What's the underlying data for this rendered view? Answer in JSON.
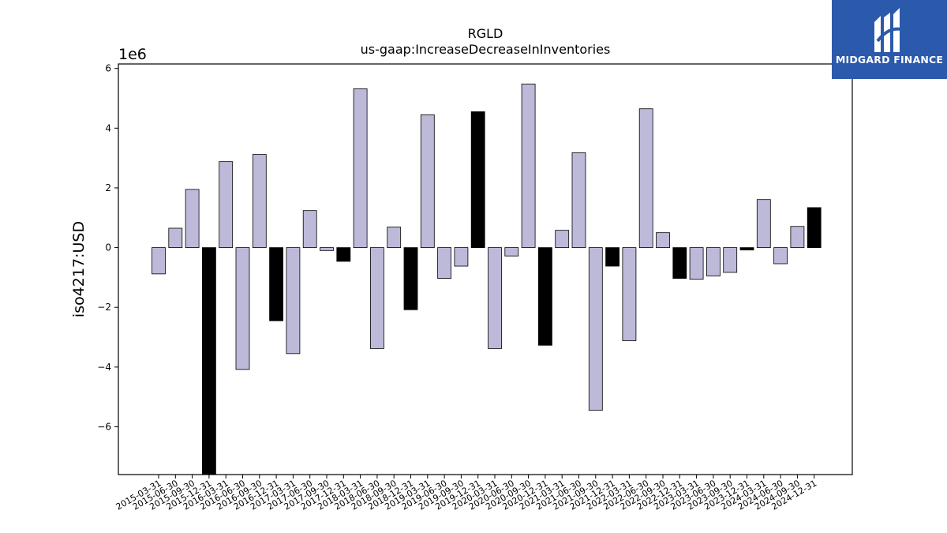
{
  "chart_data": {
    "type": "bar",
    "title": "RGLD",
    "subtitle": "us-gaap:IncreaseDecreaseInInventories",
    "xlabel": "",
    "ylabel": "iso4217:USD",
    "y_multiplier_label": "1e6",
    "ylim": [
      -7600000,
      6150000
    ],
    "yticks": [
      -6000000,
      -4000000,
      -2000000,
      0,
      2000000,
      4000000,
      6000000
    ],
    "ytick_labels": [
      "−6",
      "−4",
      "−2",
      "0",
      "2",
      "4",
      "6"
    ],
    "grid": false,
    "categories": [
      "2015-03-31",
      "2015-06-30",
      "2015-09-30",
      "2015-12-31",
      "2016-03-31",
      "2016-06-30",
      "2016-09-30",
      "2016-12-31",
      "2017-03-31",
      "2017-06-30",
      "2017-09-30",
      "2017-12-31",
      "2018-03-31",
      "2018-06-30",
      "2018-09-30",
      "2018-12-31",
      "2019-03-31",
      "2019-06-30",
      "2019-09-30",
      "2019-12-31",
      "2020-03-31",
      "2020-06-30",
      "2020-09-30",
      "2020-12-31",
      "2021-03-31",
      "2021-06-30",
      "2021-09-30",
      "2021-12-31",
      "2022-03-31",
      "2022-06-30",
      "2022-09-30",
      "2022-12-31",
      "2023-03-31",
      "2023-06-30",
      "2023-09-30",
      "2023-12-31",
      "2024-03-31",
      "2024-06-30",
      "2024-09-30",
      "2024-12-31"
    ],
    "values": [
      -880000,
      650000,
      1950000,
      -7600000,
      2880000,
      -4080000,
      3120000,
      -2450000,
      -3550000,
      1240000,
      -100000,
      -460000,
      5320000,
      -3380000,
      690000,
      -2080000,
      4450000,
      -1030000,
      -620000,
      4550000,
      -3380000,
      -280000,
      5480000,
      -3270000,
      580000,
      3180000,
      -5450000,
      -620000,
      -3120000,
      4650000,
      500000,
      -1030000,
      -1060000,
      -950000,
      -830000,
      -80000,
      1610000,
      -540000,
      710000,
      1340000
    ],
    "highlight": [
      false,
      false,
      false,
      true,
      false,
      false,
      false,
      true,
      false,
      false,
      false,
      true,
      false,
      false,
      false,
      true,
      false,
      false,
      false,
      true,
      false,
      false,
      false,
      true,
      false,
      false,
      false,
      true,
      false,
      false,
      false,
      true,
      false,
      false,
      false,
      true,
      false,
      false,
      false,
      true
    ],
    "colors": {
      "bar": "#bcb9d9",
      "highlight_bar": "#000000",
      "edge": "#000000"
    }
  },
  "logo": {
    "text": "MIDGARD FINANCE",
    "background": "#2b5aad"
  }
}
